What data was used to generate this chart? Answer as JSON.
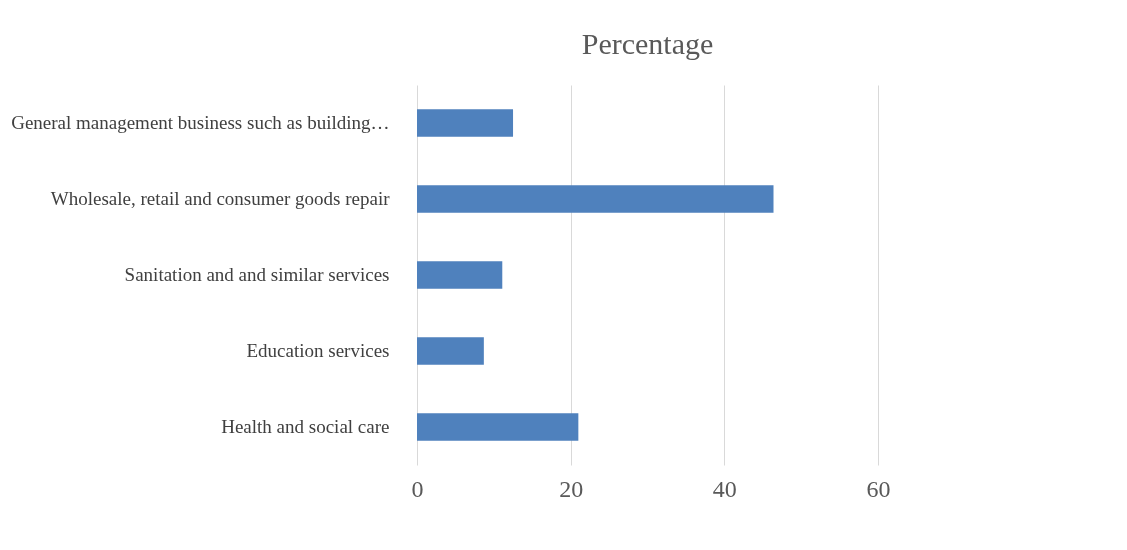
{
  "chart_data": {
    "type": "bar",
    "orientation": "horizontal",
    "title": "Percentage",
    "categories": [
      "General management business such as building…",
      "Wholesale, retail and consumer goods repair",
      "Sanitation and and similar services",
      "Education services",
      "Health and social care"
    ],
    "values": [
      12.5,
      46.4,
      11.1,
      8.7,
      21.0
    ],
    "color": "#4f81bd",
    "xlim": [
      0,
      60
    ],
    "xticks": [
      0,
      20,
      40,
      60
    ],
    "grid": "x"
  }
}
